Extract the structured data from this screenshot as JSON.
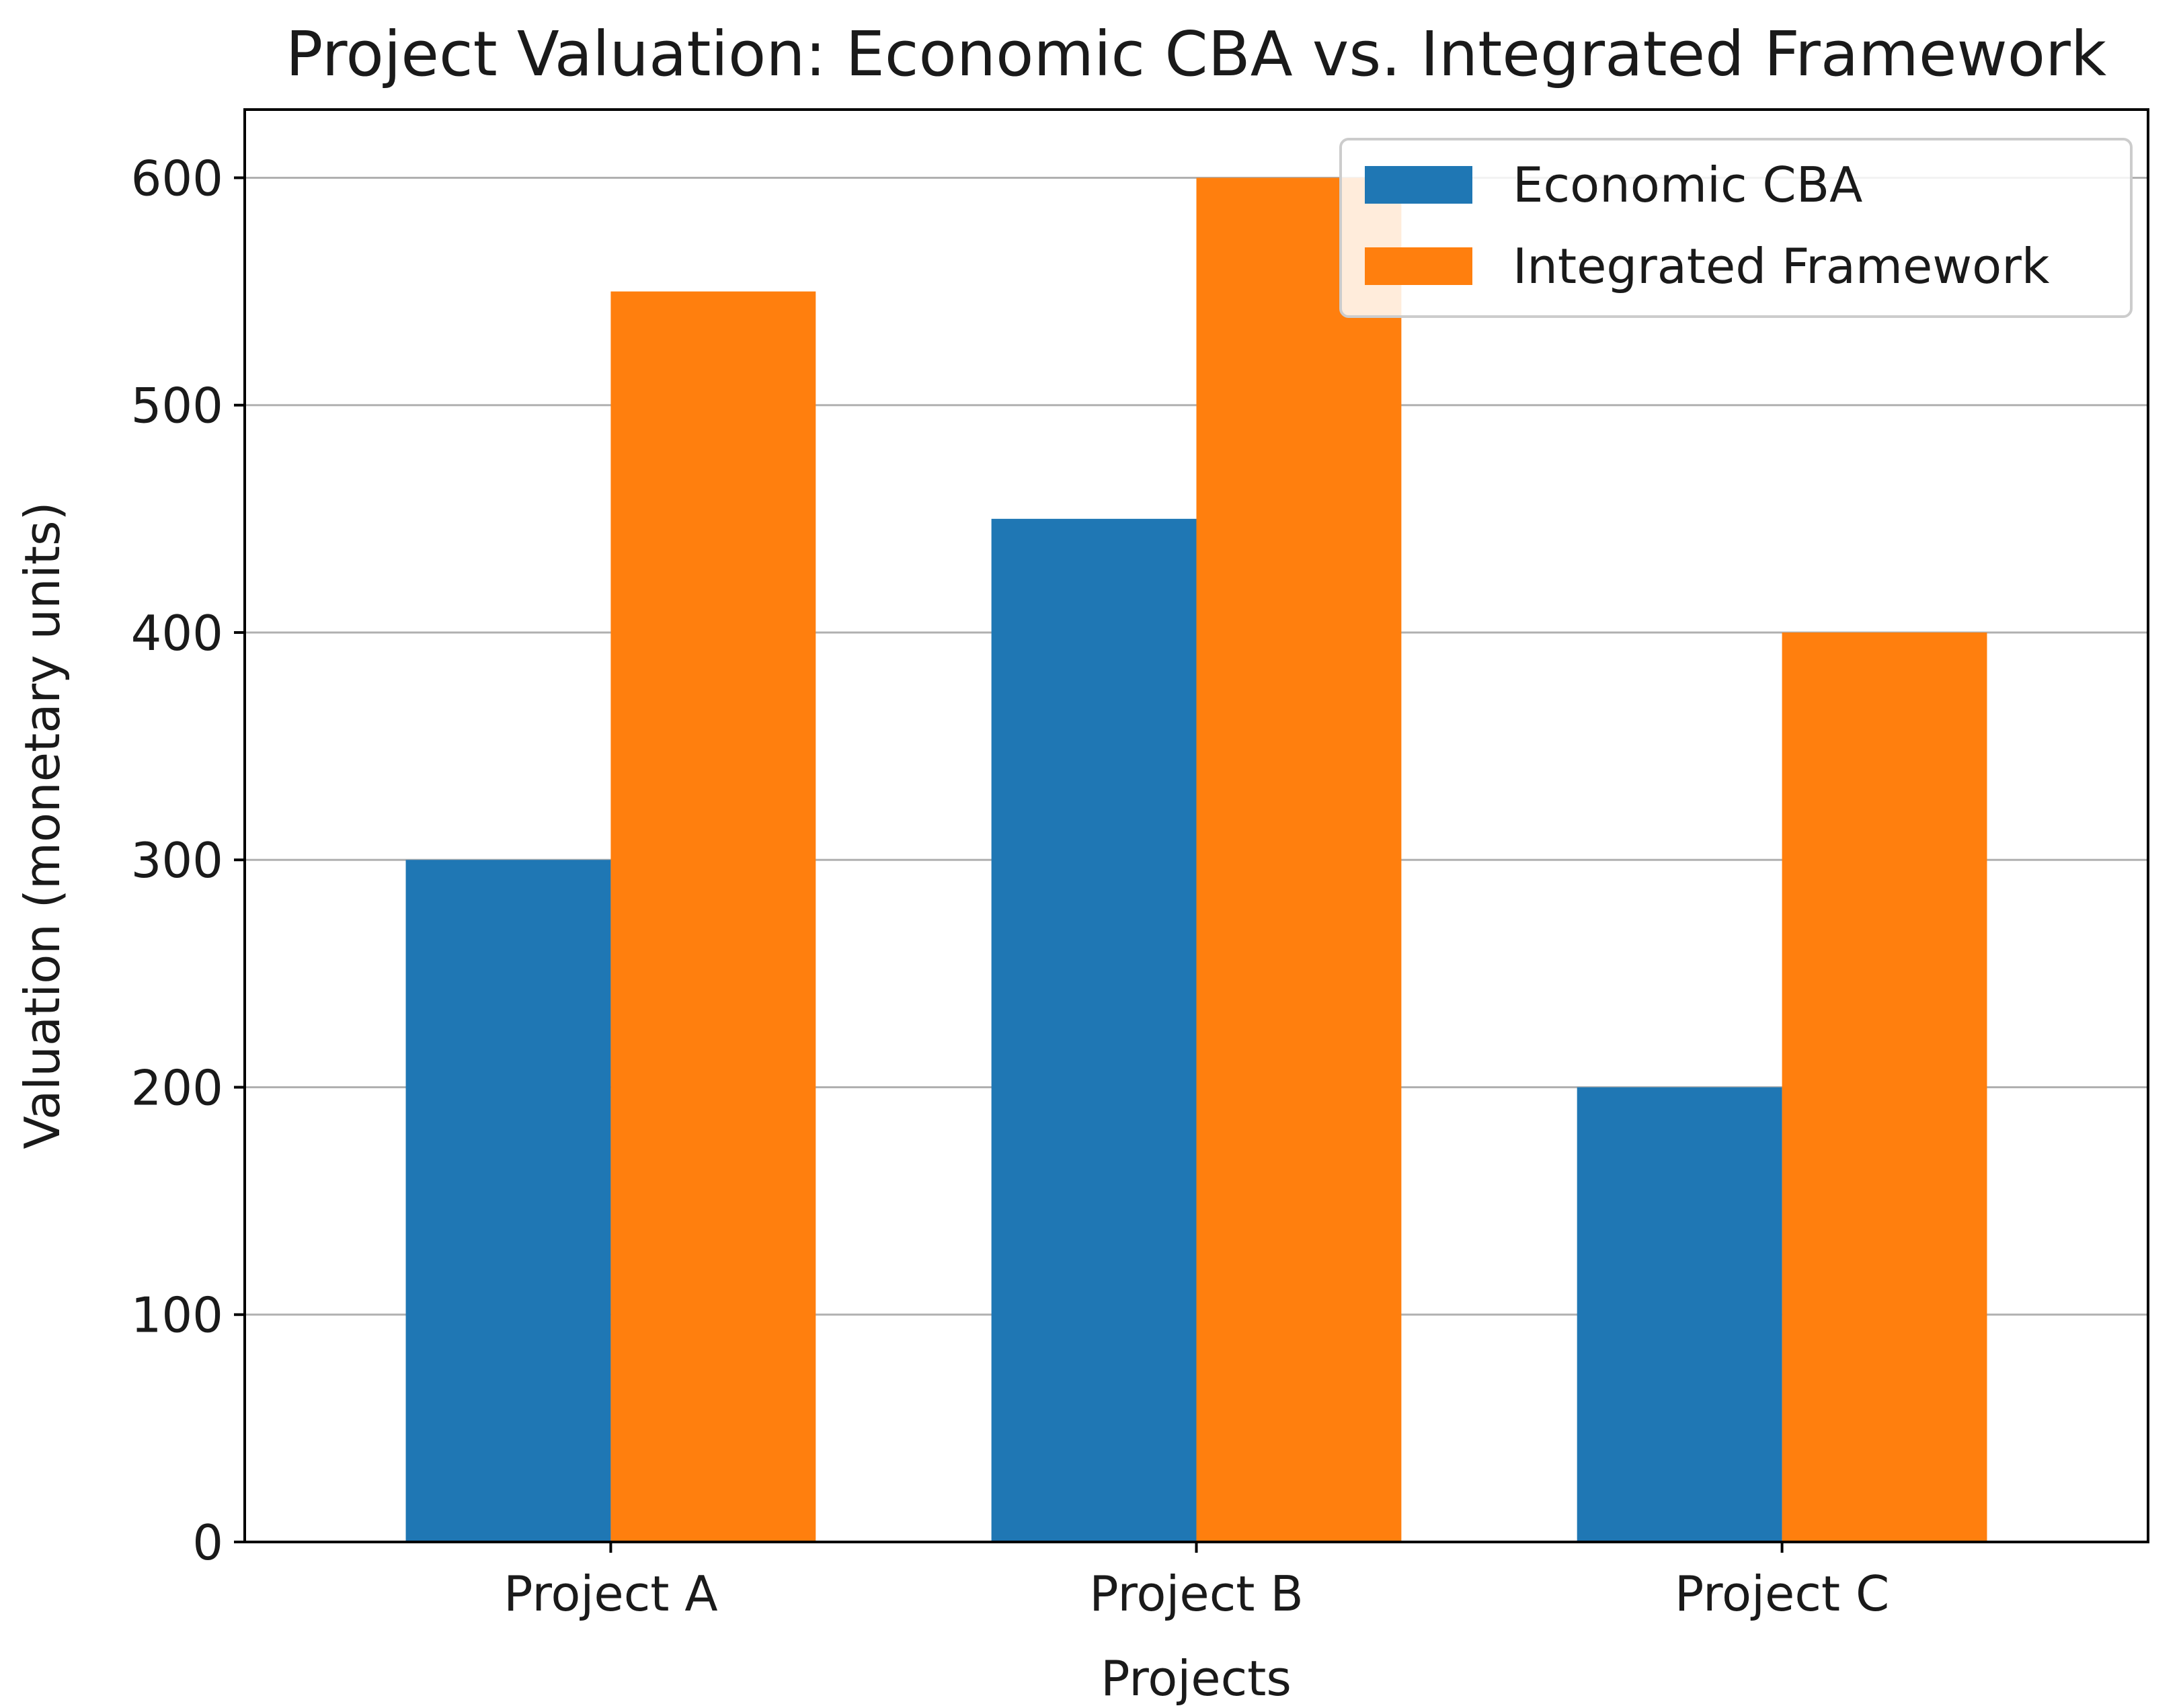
{
  "chart_data": {
    "type": "bar",
    "title": "Project Valuation: Economic CBA vs. Integrated Framework",
    "xlabel": "Projects",
    "ylabel": "Valuation (monetary units)",
    "categories": [
      "Project A",
      "Project B",
      "Project C"
    ],
    "series": [
      {
        "name": "Economic CBA",
        "values": [
          300,
          450,
          200
        ],
        "color": "#1f77b4"
      },
      {
        "name": "Integrated Framework",
        "values": [
          550,
          600,
          400
        ],
        "color": "#ff7f0e"
      }
    ],
    "ylim": [
      0,
      630
    ],
    "yticks": [
      0,
      100,
      200,
      300,
      400,
      500,
      600
    ],
    "grid": "y",
    "legend_position": "top-right"
  }
}
